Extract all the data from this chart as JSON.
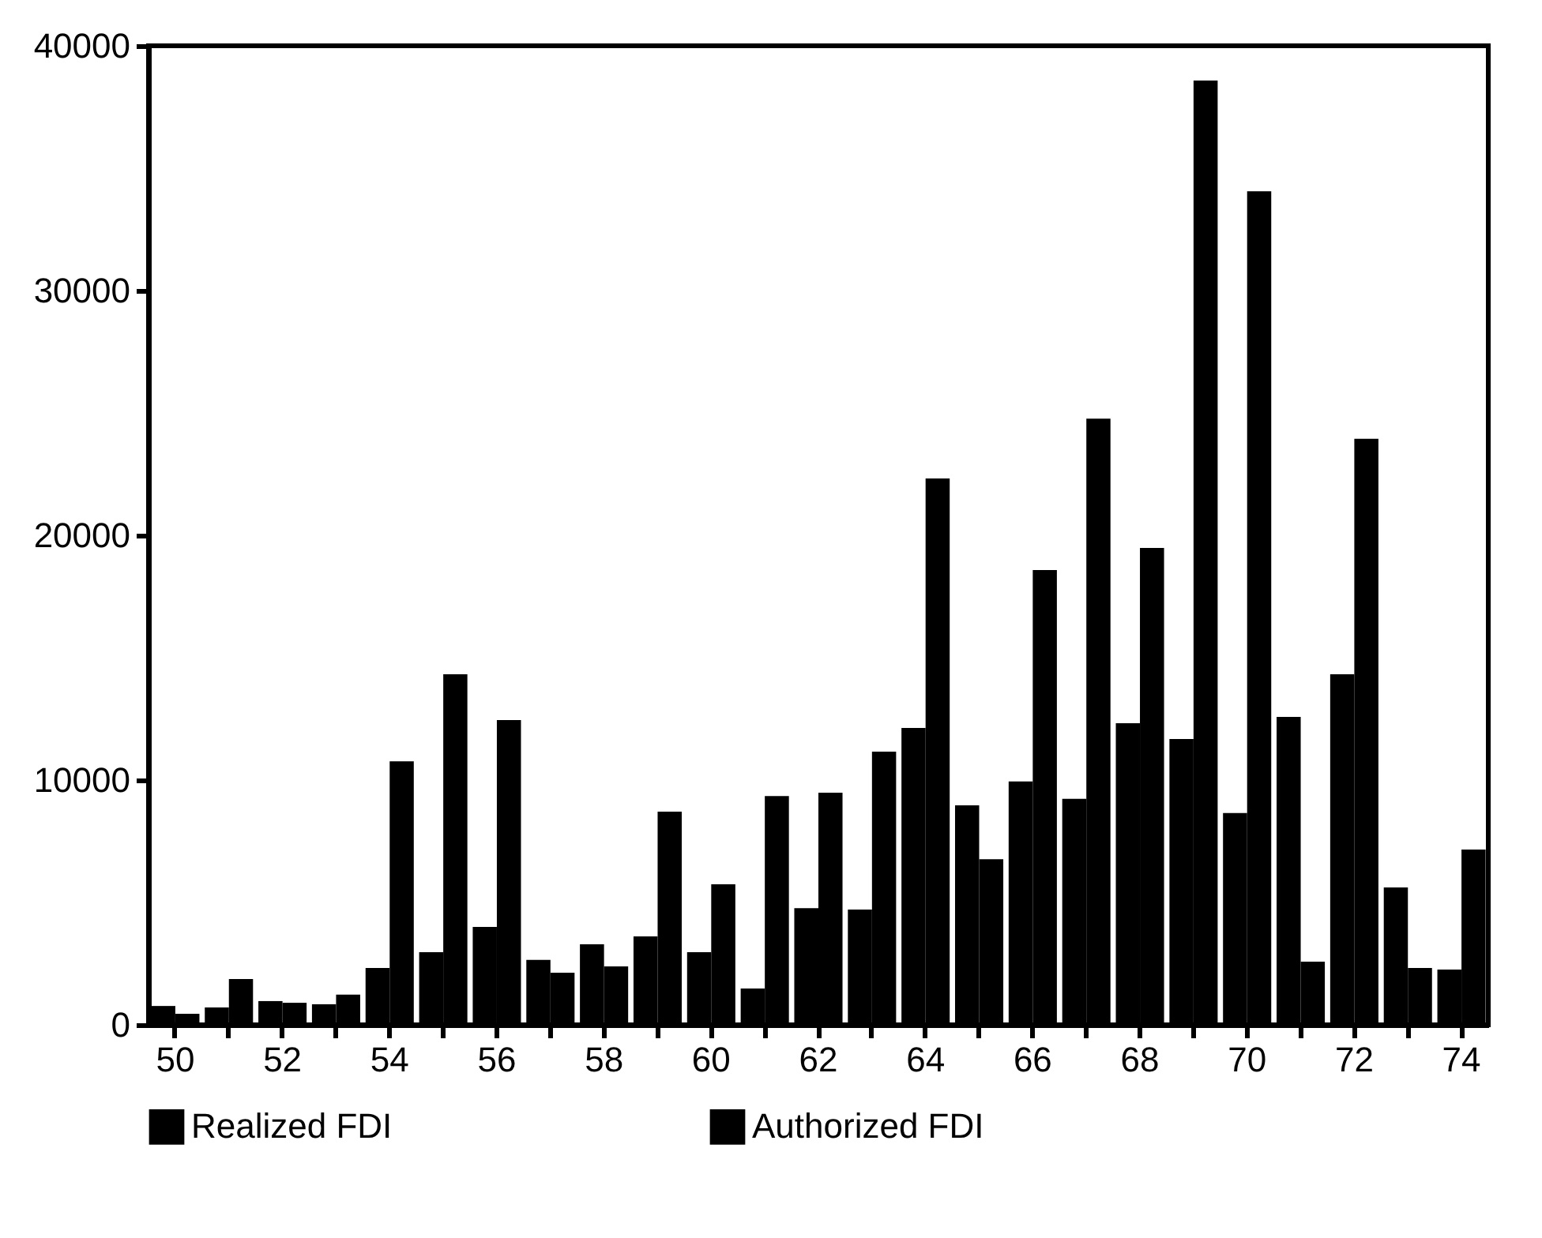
{
  "chart_data": {
    "type": "bar",
    "categories": [
      "50",
      null,
      "52",
      null,
      "54",
      null,
      "56",
      null,
      "58",
      null,
      "60",
      null,
      "62",
      null,
      "64",
      null,
      "66",
      null,
      "68",
      null,
      "70",
      null,
      "72",
      null,
      "74"
    ],
    "series": [
      {
        "name": "Realized FDI",
        "color": "#000000",
        "values": [
          770,
          710,
          970,
          840,
          2320,
          2970,
          4000,
          2650,
          3290,
          3610,
          2970,
          1480,
          4770,
          4710,
          12130,
          8970,
          9940,
          9230,
          12320,
          11680,
          8650,
          12580,
          14320,
          5610,
          2260
        ]
      },
      {
        "name": "Authorized FDI",
        "color": "#000000",
        "values": [
          450,
          1870,
          900,
          1230,
          10770,
          14320,
          12450,
          2130,
          2390,
          8710,
          5740,
          9350,
          9480,
          11160,
          22320,
          6770,
          18580,
          24770,
          19480,
          38580,
          34060,
          2580,
          23940,
          2320,
          7160
        ]
      }
    ],
    "ylim": [
      0,
      40000
    ],
    "yticks": [
      0,
      10000,
      20000,
      30000,
      40000
    ],
    "legend": "bottom"
  }
}
